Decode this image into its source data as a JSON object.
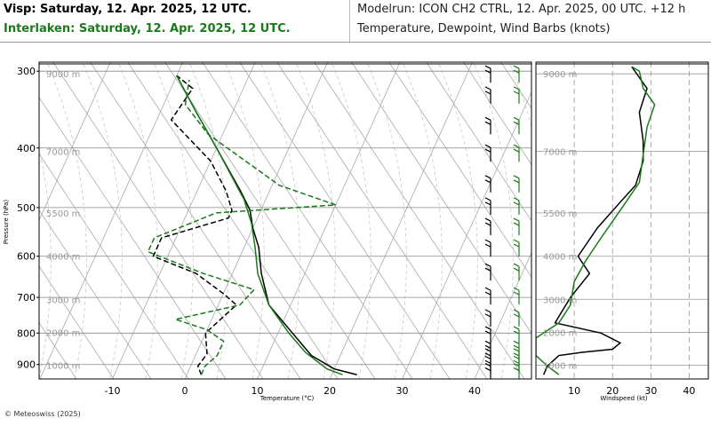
{
  "header": {
    "station_visp": "Visp: Saturday, 12. Apr. 2025, 12 UTC.",
    "station_interlaken": "Interlaken: Saturday, 12. Apr. 2025, 12 UTC.",
    "model_run": "Modelrun: ICON CH2 CTRL, 12. Apr. 2025, 00 UTC. +12 h",
    "variables": "Temperature, Dewpoint, Wind Barbs (knots)"
  },
  "footer": {
    "copyright": "© Meteoswiss (2025)"
  },
  "colors": {
    "visp": "#000000",
    "interlaken": "#1a7a1a",
    "grid": "#aaaaaa"
  },
  "chart_data": [
    {
      "type": "line",
      "subtype": "skew-t log-p sounding",
      "xlabel": "Temperature (°C)",
      "ylabel": "Pressure (hPa)",
      "x_ticks": [
        -10,
        0,
        10,
        20,
        30,
        40
      ],
      "y_ticks": [
        300,
        400,
        500,
        600,
        700,
        800,
        900
      ],
      "xlim": [
        -25,
        48
      ],
      "ylim": [
        950,
        290
      ],
      "y_scale": "log",
      "height_labels": [
        "9000 m",
        "7000 m",
        "5500 m",
        "4000 m",
        "3000 m",
        "2000 m",
        "1000 m"
      ],
      "height_label_pressures": [
        303,
        405,
        510,
        600,
        705,
        798,
        902
      ],
      "series": [
        {
          "name": "Visp",
          "variable": "temperature",
          "points": [
            [
              23.5,
              935
            ],
            [
              20,
              915
            ],
            [
              16,
              870
            ],
            [
              12,
              800
            ],
            [
              7,
              720
            ],
            [
              4,
              640
            ],
            [
              2,
              580
            ],
            [
              0,
              540
            ],
            [
              -1.5,
              505
            ],
            [
              -4,
              470
            ],
            [
              -10,
              400
            ],
            [
              -15,
              350
            ],
            [
              -20,
              305
            ]
          ]
        },
        {
          "name": "Visp",
          "variable": "dewpoint",
          "points": [
            [
              2,
              935
            ],
            [
              1,
              905
            ],
            [
              1.5,
              865
            ],
            [
              0,
              800
            ],
            [
              2.5,
              720
            ],
            [
              0,
              690
            ],
            [
              -5,
              640
            ],
            [
              -12,
              600
            ],
            [
              -12,
              560
            ],
            [
              -4,
              520
            ],
            [
              -4,
              505
            ],
            [
              -6,
              470
            ],
            [
              -10,
              420
            ],
            [
              -18,
              360
            ],
            [
              -17,
              320
            ],
            [
              -20,
              305
            ]
          ]
        },
        {
          "name": "Interlaken",
          "variable": "temperature",
          "points": [
            [
              21.5,
              935
            ],
            [
              19,
              915
            ],
            [
              15,
              860
            ],
            [
              11.5,
              800
            ],
            [
              7,
              720
            ],
            [
              3.5,
              640
            ],
            [
              1.5,
              580
            ],
            [
              -0.5,
              530
            ],
            [
              -3,
              485
            ],
            [
              -10,
              400
            ],
            [
              -15,
              350
            ],
            [
              -20,
              305
            ]
          ]
        },
        {
          "name": "Interlaken",
          "variable": "dewpoint",
          "points": [
            [
              2,
              935
            ],
            [
              2,
              905
            ],
            [
              3,
              870
            ],
            [
              3,
              825
            ],
            [
              0,
              790
            ],
            [
              -5,
              760
            ],
            [
              3,
              720
            ],
            [
              4,
              680
            ],
            [
              -4,
              640
            ],
            [
              -13,
              590
            ],
            [
              -13,
              560
            ],
            [
              -6,
              510
            ],
            [
              10,
              495
            ],
            [
              1,
              460
            ],
            [
              -6,
              415
            ],
            [
              -12,
              380
            ],
            [
              -17,
              340
            ],
            [
              -18,
              310
            ]
          ]
        }
      ],
      "wind_barbs": {
        "visp_pressures": [
          305,
          330,
          370,
          410,
          460,
          500,
          540,
          585,
          640,
          700,
          760,
          810,
          855,
          880,
          905,
          930
        ],
        "interlaken_pressures": [
          305,
          330,
          370,
          410,
          460,
          500,
          540,
          585,
          640,
          700,
          760,
          810,
          855,
          880,
          905,
          930
        ]
      }
    },
    {
      "type": "line",
      "subtype": "windspeed profile",
      "xlabel": "Windspeed (kt)",
      "x_ticks": [
        10,
        20,
        30,
        40
      ],
      "xlim": [
        0,
        45
      ],
      "ylim": [
        950,
        290
      ],
      "y_scale": "log",
      "height_labels": [
        "9000 m",
        "7000 m",
        "5500 m",
        "4000 m",
        "3000 m",
        "2000 m",
        "1000 m"
      ],
      "height_label_pressures": [
        303,
        405,
        510,
        600,
        705,
        798,
        902
      ],
      "series": [
        {
          "name": "Visp",
          "points": [
            [
              2,
              935
            ],
            [
              3,
              905
            ],
            [
              6,
              870
            ],
            [
              12,
              860
            ],
            [
              20,
              850
            ],
            [
              22,
              830
            ],
            [
              17,
              800
            ],
            [
              5,
              770
            ],
            [
              9,
              700
            ],
            [
              14,
              640
            ],
            [
              11,
              600
            ],
            [
              16,
              540
            ],
            [
              22,
              490
            ],
            [
              26,
              460
            ],
            [
              28,
              420
            ],
            [
              28,
              390
            ],
            [
              27,
              350
            ],
            [
              29,
              320
            ],
            [
              25,
              295
            ]
          ]
        },
        {
          "name": "Interlaken",
          "points": [
            [
              6,
              935
            ],
            [
              3,
              905
            ],
            [
              0,
              870
            ],
            [
              0,
              815
            ],
            [
              6,
              770
            ],
            [
              9,
              720
            ],
            [
              10,
              660
            ],
            [
              13,
              610
            ],
            [
              17,
              560
            ],
            [
              23,
              495
            ],
            [
              27,
              455
            ],
            [
              28,
              410
            ],
            [
              29,
              370
            ],
            [
              31,
              340
            ],
            [
              28,
              320
            ],
            [
              27,
              300
            ],
            [
              25,
              295
            ]
          ]
        }
      ]
    }
  ]
}
